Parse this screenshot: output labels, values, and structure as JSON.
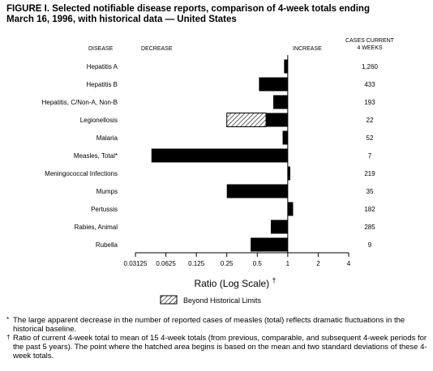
{
  "figure": {
    "title_line1": "FIGURE I. Selected notifiable disease reports, comparison of 4-week totals ending",
    "title_line2": "March 16, 1996, with historical data — United States"
  },
  "colors": {
    "bar": "#000000",
    "hatch_bar_stroke": "#000000",
    "hatch_fill": "#ffffff",
    "axis": "#000000"
  },
  "chart_data": {
    "type": "bar",
    "orientation": "horizontal",
    "column_headers": {
      "disease": "DISEASE",
      "decrease": "DECREASE",
      "increase": "INCREASE",
      "cases_line1": "CASES CURRENT",
      "cases_line2": "4 WEEKS"
    },
    "categories": [
      "Hepatitis A",
      "Hepatitis B",
      "Hepatitis, C/Non-A, Non-B",
      "Legionellosis",
      "Malaria",
      "Measles, Total*",
      "Meningococcal Infections",
      "Mumps",
      "Pertussis",
      "Rabies, Animal",
      "Rubella"
    ],
    "ratios": [
      0.92,
      0.52,
      0.72,
      0.61,
      0.89,
      0.045,
      1.06,
      0.25,
      1.13,
      0.68,
      0.43
    ],
    "beyond_historical_limits_start": [
      null,
      null,
      null,
      0.25,
      null,
      null,
      null,
      null,
      null,
      null,
      null
    ],
    "cases_current_4_weeks": [
      "1,260",
      "433",
      "193",
      "22",
      "52",
      "7",
      "219",
      "35",
      "182",
      "285",
      "9"
    ],
    "x_scale": "log2",
    "baseline": 1,
    "xlim": [
      0.03125,
      4
    ],
    "x_ticks": [
      0.03125,
      0.0625,
      0.125,
      0.25,
      0.5,
      1,
      2,
      4
    ],
    "x_tick_labels": [
      "0.03125",
      "0.0625",
      "0.125",
      "0.25",
      "0.5",
      "1",
      "2",
      "4"
    ],
    "xlabel": "Ratio (Log Scale)",
    "xlabel_sup": "†",
    "legend_label": "Beyond Historical Limits"
  },
  "footnotes": [
    {
      "symbol": "*",
      "text": "The large apparent decrease in the number of reported cases of measles (total) reflects dramatic fluctuations in the historical baseline."
    },
    {
      "symbol": "†",
      "text": "Ratio of current 4-week total to mean of 15 4-week totals (from previous, comparable, and subsequent 4-week periods for the past 5 years). The point where the hatched area begins is based on the mean and two standard deviations of these 4-week totals."
    }
  ]
}
